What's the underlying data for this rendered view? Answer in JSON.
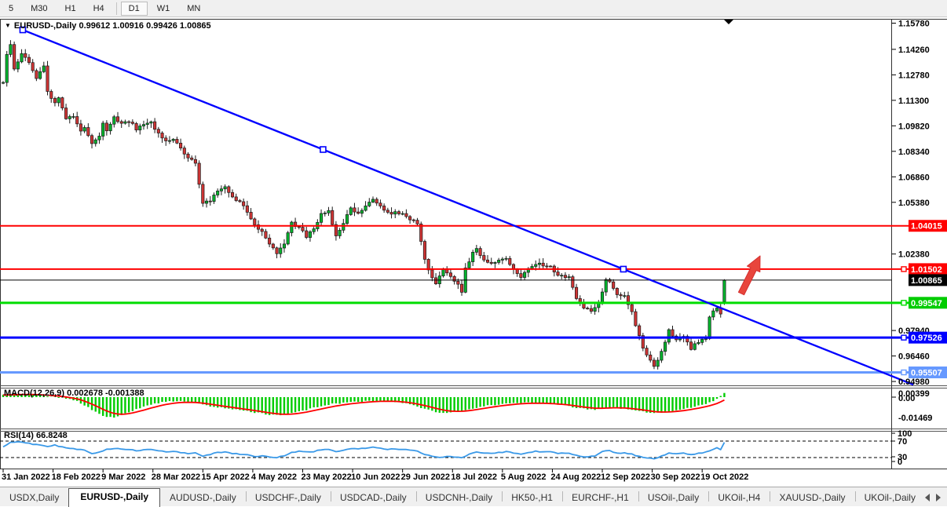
{
  "toolbar": {
    "buttons": [
      {
        "label": "5",
        "active": false
      },
      {
        "label": "M30",
        "active": false
      },
      {
        "label": "H1",
        "active": false
      },
      {
        "label": "H4",
        "active": false
      },
      {
        "label": "D1",
        "active": true
      },
      {
        "label": "W1",
        "active": false
      },
      {
        "label": "MN",
        "active": false
      }
    ],
    "separator_after_index": 3
  },
  "chart": {
    "title_symbol": "EURUSD-,Daily",
    "ohlc_string": "0.99612 1.00916 0.99426 1.00865",
    "dropdown_icon": "▼"
  },
  "indicators": {
    "macd": {
      "label_full": "MACD(12,26,9) 0.002678 -0.001388"
    },
    "rsi": {
      "label_full": "RSI(14) 66.8248"
    }
  },
  "colors": {
    "bull": "#00b32c",
    "bear": "#cf3434",
    "wick": "#1a1a1a",
    "trendline": "#0000ff",
    "level_red": "#ff0000",
    "level_green": "#00dd00",
    "level_blue": "#0000ff",
    "level_lightblue": "#6699ff",
    "bid_black": "#000000",
    "macd_hist": "#00cc00",
    "macd_signal": "#ff0000",
    "rsi_line": "#3a99e8",
    "arrow_fill": "#e8453c",
    "arrow_stroke": "#d32f2f"
  },
  "chart_data": {
    "type": "candlestick",
    "symbol": "EURUSD-",
    "timeframe": "Daily",
    "last_ohlc": {
      "open": 0.99612,
      "high": 1.00916,
      "low": 0.99426,
      "close": 1.00865
    },
    "bars_count": 196,
    "price_axis": {
      "min": 0.9498,
      "max": 1.1578,
      "ticks": [
        "1.15780",
        "1.14260",
        "1.12780",
        "1.11300",
        "1.09820",
        "1.08340",
        "1.06860",
        "1.05380",
        "1.02380",
        "0.97940",
        "0.96460",
        "0.94980"
      ]
    },
    "levels": [
      {
        "price": 1.04015,
        "label": "1.04015",
        "color": "#ff0000",
        "width": 2,
        "badge": "#ff0000",
        "marker": false
      },
      {
        "price": 1.01502,
        "label": "1.01502",
        "color": "#ff0000",
        "width": 2,
        "badge": "#ff0000",
        "marker": true
      },
      {
        "price": 1.00865,
        "label": "1.00865",
        "color": "#000000",
        "width": 1,
        "badge": "#000000",
        "marker": false
      },
      {
        "price": 0.99547,
        "label": "0.99547",
        "color": "#00dd00",
        "width": 3,
        "badge": "#00cc00",
        "marker": true
      },
      {
        "price": 0.97526,
        "label": "0.97526",
        "color": "#0000ff",
        "width": 3,
        "badge": "#0000ff",
        "marker": true
      },
      {
        "price": 0.95507,
        "label": "0.95507",
        "color": "#6699ff",
        "width": 3,
        "badge": "#6699ff",
        "marker": true
      }
    ],
    "trendline": {
      "bars": [
        5.3,
        167.7
      ],
      "prices": [
        1.1539,
        1.015
      ],
      "ray": true
    },
    "close_anchors": [
      [
        0,
        1.123
      ],
      [
        1,
        1.139
      ],
      [
        2,
        1.1455
      ],
      [
        3,
        1.131
      ],
      [
        5,
        1.1405
      ],
      [
        7,
        1.135
      ],
      [
        9,
        1.126
      ],
      [
        11,
        1.133
      ],
      [
        12,
        1.118
      ],
      [
        14,
        1.112
      ],
      [
        15,
        1.114
      ],
      [
        17,
        1.103
      ],
      [
        19,
        1.104
      ],
      [
        21,
        1.095
      ],
      [
        22,
        1.0975
      ],
      [
        24,
        1.088
      ],
      [
        26,
        1.0925
      ],
      [
        27,
        1.1005
      ],
      [
        28,
        1.096
      ],
      [
        30,
        1.103
      ],
      [
        32,
        1.0995
      ],
      [
        34,
        1.101
      ],
      [
        36,
        1.0965
      ],
      [
        38,
        1.0985
      ],
      [
        40,
        1.1
      ],
      [
        42,
        1.094
      ],
      [
        44,
        1.089
      ],
      [
        46,
        1.09
      ],
      [
        48,
        1.085
      ],
      [
        50,
        1.08
      ],
      [
        52,
        1.076
      ],
      [
        53,
        1.064
      ],
      [
        54,
        1.053
      ],
      [
        56,
        1.055
      ],
      [
        58,
        1.061
      ],
      [
        60,
        1.0625
      ],
      [
        62,
        1.057
      ],
      [
        64,
        1.054
      ],
      [
        66,
        1.048
      ],
      [
        68,
        1.04
      ],
      [
        70,
        1.037
      ],
      [
        72,
        1.03
      ],
      [
        74,
        1.024
      ],
      [
        76,
        1.029
      ],
      [
        78,
        1.0415
      ],
      [
        80,
        1.039
      ],
      [
        82,
        1.034
      ],
      [
        84,
        1.0385
      ],
      [
        86,
        1.0475
      ],
      [
        88,
        1.0485
      ],
      [
        90,
        1.034
      ],
      [
        92,
        1.042
      ],
      [
        94,
        1.05
      ],
      [
        96,
        1.048
      ],
      [
        98,
        1.051
      ],
      [
        100,
        1.056
      ],
      [
        102,
        1.052
      ],
      [
        104,
        1.048
      ],
      [
        106,
        1.0475
      ],
      [
        108,
        1.047
      ],
      [
        110,
        1.044
      ],
      [
        112,
        1.041
      ],
      [
        114,
        1.02
      ],
      [
        116,
        1.01
      ],
      [
        117,
        1.007
      ],
      [
        119,
        1.015
      ],
      [
        121,
        1.01
      ],
      [
        123,
        1.006
      ],
      [
        124,
        1.001
      ],
      [
        125,
        1.015
      ],
      [
        127,
        1.025
      ],
      [
        128,
        1.027
      ],
      [
        130,
        1.02
      ],
      [
        132,
        1.019
      ],
      [
        134,
        1.0195
      ],
      [
        136,
        1.021
      ],
      [
        138,
        1.0155
      ],
      [
        140,
        1.011
      ],
      [
        142,
        1.0155
      ],
      [
        144,
        1.018
      ],
      [
        146,
        1.0175
      ],
      [
        148,
        1.017
      ],
      [
        150,
        1.011
      ],
      [
        151,
        1.0115
      ],
      [
        153,
        1.01
      ],
      [
        155,
        0.998
      ],
      [
        157,
        0.9925
      ],
      [
        159,
        0.9905
      ],
      [
        161,
        0.995
      ],
      [
        163,
        1.009
      ],
      [
        164,
        1.0085
      ],
      [
        166,
        1.0
      ],
      [
        168,
        0.999
      ],
      [
        170,
        0.99
      ],
      [
        172,
        0.976
      ],
      [
        173,
        0.97
      ],
      [
        174,
        0.9655
      ],
      [
        176,
        0.959
      ],
      [
        178,
        0.967
      ],
      [
        180,
        0.979
      ],
      [
        182,
        0.974
      ],
      [
        184,
        0.9755
      ],
      [
        186,
        0.969
      ],
      [
        188,
        0.973
      ],
      [
        190,
        0.9755
      ],
      [
        191,
        0.987
      ],
      [
        192,
        0.9905
      ],
      [
        193,
        0.993
      ],
      [
        194,
        0.989
      ],
      [
        195,
        1.00865
      ]
    ],
    "macd": {
      "axis_labels": [
        "0.00399",
        "0.00",
        "-0.01469"
      ],
      "current": [
        0.002678,
        -0.001388
      ],
      "anchors": [
        [
          0,
          0.0015
        ],
        [
          4,
          0.0022
        ],
        [
          8,
          0.0018
        ],
        [
          12,
          0.0008
        ],
        [
          16,
          -0.0005
        ],
        [
          20,
          -0.003
        ],
        [
          24,
          -0.009
        ],
        [
          27,
          -0.0135
        ],
        [
          30,
          -0.0147
        ],
        [
          33,
          -0.0118
        ],
        [
          36,
          -0.0085
        ],
        [
          40,
          -0.0052
        ],
        [
          44,
          -0.0032
        ],
        [
          48,
          -0.003
        ],
        [
          52,
          -0.0042
        ],
        [
          56,
          -0.0065
        ],
        [
          60,
          -0.008
        ],
        [
          64,
          -0.0095
        ],
        [
          68,
          -0.011
        ],
        [
          72,
          -0.0128
        ],
        [
          75,
          -0.0132
        ],
        [
          78,
          -0.0118
        ],
        [
          81,
          -0.0098
        ],
        [
          85,
          -0.007
        ],
        [
          89,
          -0.005
        ],
        [
          93,
          -0.0038
        ],
        [
          97,
          -0.003
        ],
        [
          101,
          -0.0026
        ],
        [
          105,
          -0.003
        ],
        [
          109,
          -0.0045
        ],
        [
          113,
          -0.0075
        ],
        [
          117,
          -0.0105
        ],
        [
          120,
          -0.0115
        ],
        [
          124,
          -0.01
        ],
        [
          128,
          -0.0075
        ],
        [
          132,
          -0.0058
        ],
        [
          136,
          -0.0046
        ],
        [
          140,
          -0.004
        ],
        [
          144,
          -0.0042
        ],
        [
          148,
          -0.005
        ],
        [
          152,
          -0.0062
        ],
        [
          156,
          -0.0082
        ],
        [
          160,
          -0.0088
        ],
        [
          164,
          -0.0072
        ],
        [
          168,
          -0.0082
        ],
        [
          172,
          -0.01
        ],
        [
          176,
          -0.0118
        ],
        [
          180,
          -0.0104
        ],
        [
          184,
          -0.0086
        ],
        [
          188,
          -0.0062
        ],
        [
          191,
          -0.004
        ],
        [
          193,
          -0.0015
        ],
        [
          194,
          0.0005
        ],
        [
          195,
          0.002678
        ]
      ]
    },
    "rsi": {
      "axis_labels": [
        "100",
        "70",
        "30",
        "0"
      ],
      "guide_levels": [
        70,
        30
      ],
      "current": 66.8248,
      "anchors": [
        [
          0,
          55
        ],
        [
          2,
          67
        ],
        [
          4,
          69
        ],
        [
          6,
          66
        ],
        [
          8,
          62
        ],
        [
          10,
          60
        ],
        [
          12,
          57
        ],
        [
          14,
          60
        ],
        [
          16,
          55
        ],
        [
          18,
          52
        ],
        [
          20,
          50
        ],
        [
          22,
          48
        ],
        [
          24,
          40
        ],
        [
          26,
          44
        ],
        [
          28,
          50
        ],
        [
          30,
          52
        ],
        [
          32,
          50
        ],
        [
          34,
          49
        ],
        [
          36,
          47
        ],
        [
          38,
          48
        ],
        [
          40,
          49
        ],
        [
          42,
          46
        ],
        [
          44,
          44
        ],
        [
          46,
          45
        ],
        [
          48,
          42
        ],
        [
          50,
          40
        ],
        [
          52,
          41
        ],
        [
          54,
          34
        ],
        [
          56,
          38
        ],
        [
          58,
          42
        ],
        [
          60,
          43
        ],
        [
          62,
          40
        ],
        [
          64,
          38
        ],
        [
          66,
          36
        ],
        [
          68,
          33
        ],
        [
          70,
          34
        ],
        [
          72,
          32
        ],
        [
          74,
          30
        ],
        [
          76,
          35
        ],
        [
          78,
          42
        ],
        [
          80,
          45
        ],
        [
          82,
          43
        ],
        [
          84,
          45
        ],
        [
          86,
          49
        ],
        [
          88,
          50
        ],
        [
          90,
          45
        ],
        [
          92,
          48
        ],
        [
          94,
          52
        ],
        [
          96,
          51
        ],
        [
          98,
          53
        ],
        [
          100,
          56
        ],
        [
          102,
          53
        ],
        [
          104,
          50
        ],
        [
          106,
          50
        ],
        [
          108,
          50
        ],
        [
          110,
          48
        ],
        [
          112,
          46
        ],
        [
          114,
          38
        ],
        [
          116,
          33
        ],
        [
          118,
          31
        ],
        [
          120,
          33
        ],
        [
          122,
          32
        ],
        [
          124,
          30
        ],
        [
          126,
          38
        ],
        [
          128,
          44
        ],
        [
          130,
          41
        ],
        [
          132,
          41
        ],
        [
          134,
          42
        ],
        [
          136,
          44
        ],
        [
          138,
          41
        ],
        [
          140,
          38
        ],
        [
          142,
          42
        ],
        [
          144,
          45
        ],
        [
          146,
          44
        ],
        [
          148,
          44
        ],
        [
          150,
          40
        ],
        [
          152,
          41
        ],
        [
          154,
          38
        ],
        [
          156,
          33
        ],
        [
          158,
          31
        ],
        [
          160,
          34
        ],
        [
          162,
          45
        ],
        [
          164,
          46
        ],
        [
          166,
          41
        ],
        [
          168,
          41
        ],
        [
          170,
          38
        ],
        [
          172,
          33
        ],
        [
          174,
          30
        ],
        [
          176,
          28
        ],
        [
          178,
          33
        ],
        [
          180,
          42
        ],
        [
          182,
          39
        ],
        [
          184,
          41
        ],
        [
          186,
          37
        ],
        [
          188,
          40
        ],
        [
          190,
          43
        ],
        [
          192,
          50
        ],
        [
          193,
          53
        ],
        [
          194,
          50
        ],
        [
          195,
          66.8248
        ]
      ]
    },
    "date_axis": {
      "labels": [
        "31 Jan 2022",
        "18 Feb 2022",
        "9 Mar 2022",
        "28 Mar 2022",
        "15 Apr 2022",
        "4 May 2022",
        "23 May 2022",
        "10 Jun 2022",
        "29 Jun 2022",
        "18 Jul 2022",
        "5 Aug 2022",
        "24 Aug 2022",
        "12 Sep 2022",
        "30 Sep 2022",
        "19 Oct 2022"
      ],
      "bar_positions": [
        0,
        13.5,
        27,
        40.5,
        54,
        67.5,
        81,
        94.5,
        108,
        121.5,
        135,
        148.5,
        162,
        175.5,
        189
      ]
    },
    "annotations": [
      {
        "type": "arrow-up-right",
        "color": "#e8453c",
        "near_price": 1.015,
        "near_bar": 200
      }
    ]
  },
  "tabs": {
    "items": [
      {
        "label": "USDX,Daily",
        "selected": false
      },
      {
        "label": "EURUSD-,Daily",
        "selected": true
      },
      {
        "label": "AUDUSD-,Daily",
        "selected": false
      },
      {
        "label": "USDCHF-,Daily",
        "selected": false
      },
      {
        "label": "USDCAD-,Daily",
        "selected": false
      },
      {
        "label": "USDCNH-,Daily",
        "selected": false
      },
      {
        "label": "HK50-,H1",
        "selected": false
      },
      {
        "label": "EURCHF-,H1",
        "selected": false
      },
      {
        "label": "USOil-,Daily",
        "selected": false
      },
      {
        "label": "UKOil-,H4",
        "selected": false
      },
      {
        "label": "XAUUSD-,Daily",
        "selected": false
      },
      {
        "label": "UKOil-,Daily",
        "selected": false
      }
    ]
  }
}
